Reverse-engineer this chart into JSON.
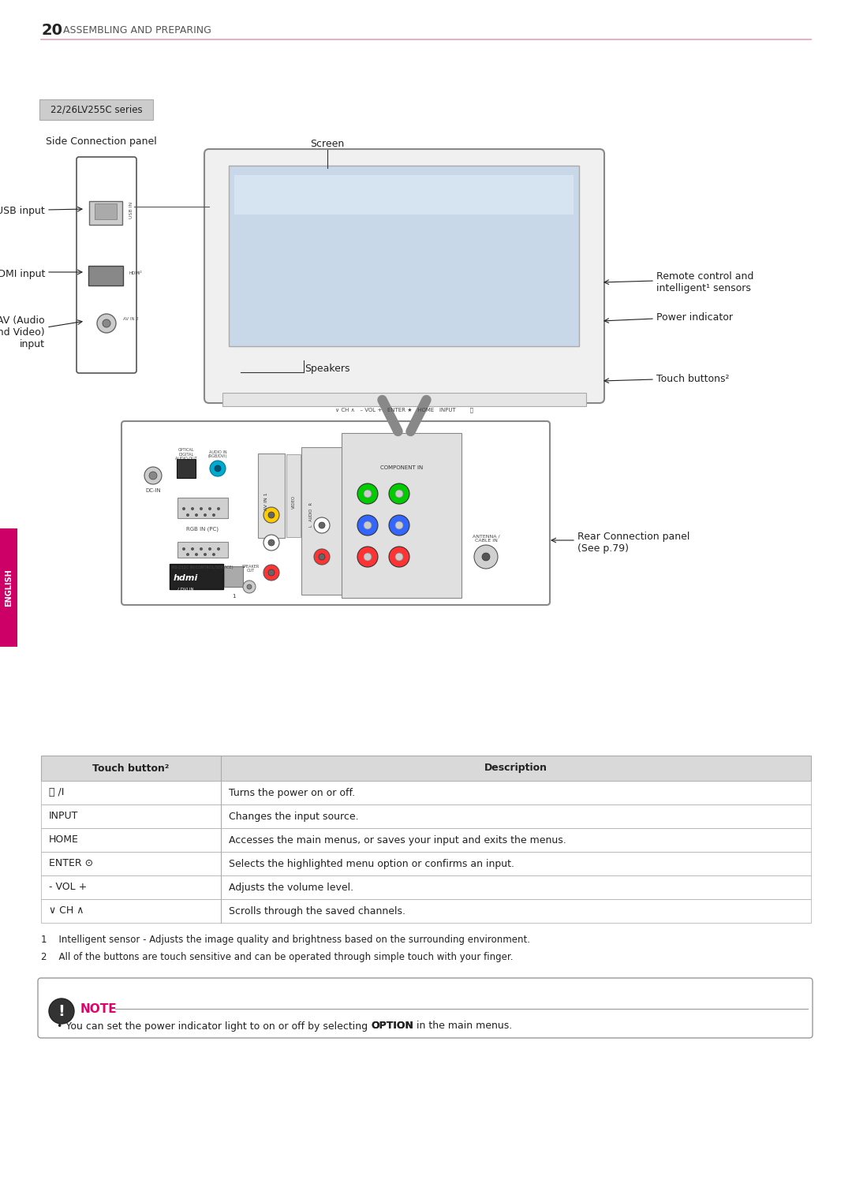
{
  "page_number": "20",
  "section_title": "ASSEMBLING AND PREPARING",
  "series_label": "22/26LV255C series",
  "side_panel_label": "Side Connection panel",
  "screen_label": "Screen",
  "speakers_label": "Speakers",
  "usb_input_label": "USB input",
  "hdmi_input_label": "HDMI input",
  "av_input_label": "AV (Audio\nand Video)\ninput",
  "remote_label": "Remote control and\nintelligent¹ sensors",
  "power_indicator_label": "Power indicator",
  "touch_buttons_label": "Touch buttons²",
  "rear_panel_label": "Rear Connection panel\n(See p.79)",
  "table_headers": [
    "Touch button²",
    "Description"
  ],
  "table_rows": [
    [
      "⏻ /I",
      "Turns the power on or off."
    ],
    [
      "INPUT",
      "Changes the input source."
    ],
    [
      "HOME",
      "Accesses the main menus, or saves your input and exits the menus."
    ],
    [
      "ENTER ⊙",
      "Selects the highlighted menu option or confirms an input."
    ],
    [
      "- VOL +",
      "Adjusts the volume level."
    ],
    [
      "∨ CH ∧",
      "Scrolls through the saved channels."
    ]
  ],
  "footnote1": "1    Intelligent sensor - Adjusts the image quality and brightness based on the surrounding environment.",
  "footnote2": "2    All of the buttons are touch sensitive and can be operated through simple touch with your finger.",
  "note_text": "You can set the power indicator light to on or off by selecting ",
  "note_bold": "OPTION",
  "note_text2": " in the main menus.",
  "pink_color": "#e6006e",
  "header_bg": "#d9d9d9",
  "line_color": "#e8a0b8",
  "english_tab_color": "#cc0066",
  "border_color": "#999999",
  "table_border": "#aaaaaa"
}
